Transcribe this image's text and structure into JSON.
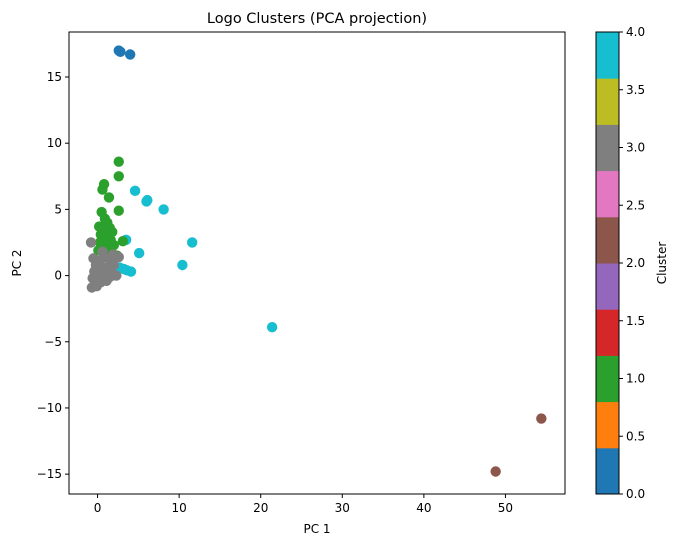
{
  "chart_data": {
    "type": "scatter",
    "title": "Logo Clusters (PCA projection)",
    "xlabel": "PC 1",
    "ylabel": "PC 2",
    "xlim": [
      -3.5,
      57.3
    ],
    "ylim": [
      -16.5,
      18.4
    ],
    "xticks": [
      0,
      10,
      20,
      30,
      40,
      50
    ],
    "yticks": [
      -15,
      -10,
      -5,
      0,
      5,
      10,
      15
    ],
    "grid": false,
    "colorbar": {
      "label": "Cluster",
      "range": [
        0,
        4
      ],
      "ticks": [
        "0.0",
        "0.5",
        "1.0",
        "1.5",
        "2.0",
        "2.5",
        "3.0",
        "3.5",
        "4.0"
      ],
      "colors": [
        "#1f77b4",
        "#ff7f0e",
        "#2ca02c",
        "#d62728",
        "#9467bd",
        "#8c564b",
        "#e377c2",
        "#7f7f7f",
        "#bcbd22",
        "#17becf"
      ]
    },
    "cluster_colors": {
      "0": "#1f77b4",
      "1": "#2ca02c",
      "2": "#8c564b",
      "3": "#7f7f7f",
      "4": "#17becf"
    },
    "points": [
      {
        "x": 2.8,
        "y": 16.9,
        "cluster": 0
      },
      {
        "x": 2.6,
        "y": 17.0,
        "cluster": 0
      },
      {
        "x": 4.0,
        "y": 16.7,
        "cluster": 0
      },
      {
        "x": 54.4,
        "y": -10.8,
        "cluster": 2
      },
      {
        "x": 48.8,
        "y": -14.8,
        "cluster": 2
      },
      {
        "x": 21.4,
        "y": -3.9,
        "cluster": 4
      },
      {
        "x": 11.6,
        "y": 2.5,
        "cluster": 4
      },
      {
        "x": 10.4,
        "y": 0.8,
        "cluster": 4
      },
      {
        "x": 8.1,
        "y": 5.0,
        "cluster": 4
      },
      {
        "x": 6.1,
        "y": 5.7,
        "cluster": 4
      },
      {
        "x": 6.0,
        "y": 5.6,
        "cluster": 4
      },
      {
        "x": 4.6,
        "y": 6.4,
        "cluster": 4
      },
      {
        "x": 5.1,
        "y": 1.7,
        "cluster": 4
      },
      {
        "x": 4.1,
        "y": 0.3,
        "cluster": 4
      },
      {
        "x": 3.6,
        "y": 0.4,
        "cluster": 4
      },
      {
        "x": 3.2,
        "y": 0.5,
        "cluster": 4
      },
      {
        "x": 2.7,
        "y": 0.6,
        "cluster": 4
      },
      {
        "x": 3.5,
        "y": 2.7,
        "cluster": 4
      },
      {
        "x": 2.6,
        "y": 8.6,
        "cluster": 1
      },
      {
        "x": 2.6,
        "y": 7.5,
        "cluster": 1
      },
      {
        "x": 0.8,
        "y": 6.9,
        "cluster": 1
      },
      {
        "x": 0.6,
        "y": 6.5,
        "cluster": 1
      },
      {
        "x": 1.4,
        "y": 5.9,
        "cluster": 1
      },
      {
        "x": 2.6,
        "y": 4.9,
        "cluster": 1
      },
      {
        "x": 0.5,
        "y": 4.8,
        "cluster": 1
      },
      {
        "x": 0.9,
        "y": 4.3,
        "cluster": 1
      },
      {
        "x": 1.2,
        "y": 4.0,
        "cluster": 1
      },
      {
        "x": 0.2,
        "y": 3.7,
        "cluster": 1
      },
      {
        "x": 1.5,
        "y": 3.6,
        "cluster": 1
      },
      {
        "x": 0.7,
        "y": 3.4,
        "cluster": 1
      },
      {
        "x": 1.8,
        "y": 3.3,
        "cluster": 1
      },
      {
        "x": 0.4,
        "y": 3.1,
        "cluster": 1
      },
      {
        "x": 1.1,
        "y": 3.0,
        "cluster": 1
      },
      {
        "x": 0.8,
        "y": 2.8,
        "cluster": 1
      },
      {
        "x": 1.6,
        "y": 2.7,
        "cluster": 1
      },
      {
        "x": 3.1,
        "y": 2.6,
        "cluster": 1
      },
      {
        "x": 0.3,
        "y": 2.5,
        "cluster": 1
      },
      {
        "x": 1.3,
        "y": 2.4,
        "cluster": 1
      },
      {
        "x": 2.0,
        "y": 2.3,
        "cluster": 1
      },
      {
        "x": 0.6,
        "y": 2.2,
        "cluster": 1
      },
      {
        "x": 1.0,
        "y": 2.0,
        "cluster": 1
      },
      {
        "x": 0.1,
        "y": 1.9,
        "cluster": 1
      },
      {
        "x": 1.7,
        "y": 1.8,
        "cluster": 1
      },
      {
        "x": 2.4,
        "y": 1.5,
        "cluster": 1
      },
      {
        "x": -0.8,
        "y": 2.5,
        "cluster": 3
      },
      {
        "x": -0.5,
        "y": 1.3,
        "cluster": 3
      },
      {
        "x": 0.2,
        "y": 1.1,
        "cluster": 3
      },
      {
        "x": 0.8,
        "y": 1.4,
        "cluster": 3
      },
      {
        "x": 1.5,
        "y": 1.2,
        "cluster": 3
      },
      {
        "x": -0.2,
        "y": 0.8,
        "cluster": 3
      },
      {
        "x": 0.5,
        "y": 0.7,
        "cluster": 3
      },
      {
        "x": 1.2,
        "y": 0.6,
        "cluster": 3
      },
      {
        "x": 2.0,
        "y": 0.8,
        "cluster": 3
      },
      {
        "x": -0.4,
        "y": 0.3,
        "cluster": 3
      },
      {
        "x": 0.3,
        "y": 0.2,
        "cluster": 3
      },
      {
        "x": 1.0,
        "y": 0.1,
        "cluster": 3
      },
      {
        "x": 1.7,
        "y": 0.2,
        "cluster": 3
      },
      {
        "x": 2.3,
        "y": 0.0,
        "cluster": 3
      },
      {
        "x": -0.6,
        "y": -0.2,
        "cluster": 3
      },
      {
        "x": 0.1,
        "y": -0.3,
        "cluster": 3
      },
      {
        "x": 0.8,
        "y": -0.2,
        "cluster": 3
      },
      {
        "x": 1.5,
        "y": -0.1,
        "cluster": 3
      },
      {
        "x": -0.3,
        "y": -0.6,
        "cluster": 3
      },
      {
        "x": 0.4,
        "y": -0.5,
        "cluster": 3
      },
      {
        "x": 1.1,
        "y": -0.4,
        "cluster": 3
      },
      {
        "x": -0.7,
        "y": -0.9,
        "cluster": 3
      },
      {
        "x": -0.1,
        "y": -0.8,
        "cluster": 3
      },
      {
        "x": 0.6,
        "y": 1.8,
        "cluster": 3
      },
      {
        "x": 1.9,
        "y": 1.6,
        "cluster": 3
      },
      {
        "x": 2.6,
        "y": 1.4,
        "cluster": 3
      }
    ]
  }
}
